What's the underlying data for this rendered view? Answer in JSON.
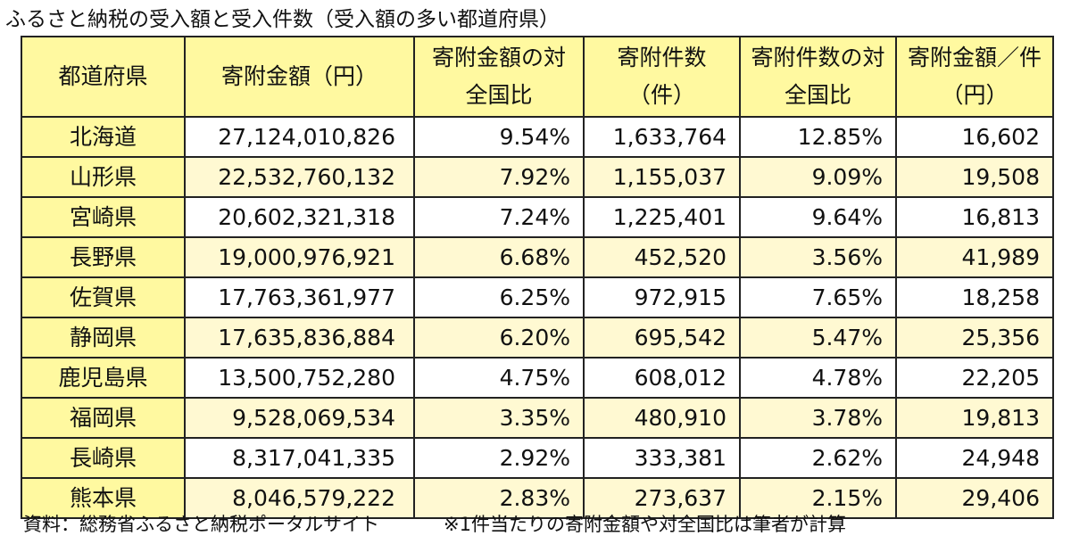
{
  "title": "ふるさと納税の受入額と受入件数（受入額の多い都道府県）",
  "columns": [
    {
      "line1": "都道府県",
      "line2": ""
    },
    {
      "line1": "寄附金額（円）",
      "line2": ""
    },
    {
      "line1": "寄附金額の対",
      "line2": "全国比"
    },
    {
      "line1": "寄附件数",
      "line2": "（件）"
    },
    {
      "line1": "寄附件数の対",
      "line2": "全国比"
    },
    {
      "line1": "寄附金額／件",
      "line2": "（円）"
    }
  ],
  "rows": [
    {
      "prefecture": "北海道",
      "amount": "27,124,010,826",
      "amount_share": "9.54%",
      "count": "1,633,764",
      "count_share": "12.85%",
      "per_case": "16,602"
    },
    {
      "prefecture": "山形県",
      "amount": "22,532,760,132",
      "amount_share": "7.92%",
      "count": "1,155,037",
      "count_share": "9.09%",
      "per_case": "19,508"
    },
    {
      "prefecture": "宮崎県",
      "amount": "20,602,321,318",
      "amount_share": "7.24%",
      "count": "1,225,401",
      "count_share": "9.64%",
      "per_case": "16,813"
    },
    {
      "prefecture": "長野県",
      "amount": "19,000,976,921",
      "amount_share": "6.68%",
      "count": "452,520",
      "count_share": "3.56%",
      "per_case": "41,989"
    },
    {
      "prefecture": "佐賀県",
      "amount": "17,763,361,977",
      "amount_share": "6.25%",
      "count": "972,915",
      "count_share": "7.65%",
      "per_case": "18,258"
    },
    {
      "prefecture": "静岡県",
      "amount": "17,635,836,884",
      "amount_share": "6.20%",
      "count": "695,542",
      "count_share": "5.47%",
      "per_case": "25,356"
    },
    {
      "prefecture": "鹿児島県",
      "amount": "13,500,752,280",
      "amount_share": "4.75%",
      "count": "608,012",
      "count_share": "4.78%",
      "per_case": "22,205"
    },
    {
      "prefecture": "福岡県",
      "amount": "9,528,069,534",
      "amount_share": "3.35%",
      "count": "480,910",
      "count_share": "3.78%",
      "per_case": "19,813"
    },
    {
      "prefecture": "長崎県",
      "amount": "8,317,041,335",
      "amount_share": "2.92%",
      "count": "333,381",
      "count_share": "2.62%",
      "per_case": "24,948"
    },
    {
      "prefecture": "熊本県",
      "amount": "8,046,579,222",
      "amount_share": "2.83%",
      "count": "273,637",
      "count_share": "2.15%",
      "per_case": "29,406"
    }
  ],
  "footer": {
    "source": "資料：総務省ふるさと納税ポータルサイト",
    "note": "※1件当たりの寄附金額や対全国比は筆者が計算"
  },
  "colors": {
    "header_fill": "#fff9a0",
    "stripe_fill": "#fff9d2",
    "border": "#222222"
  }
}
